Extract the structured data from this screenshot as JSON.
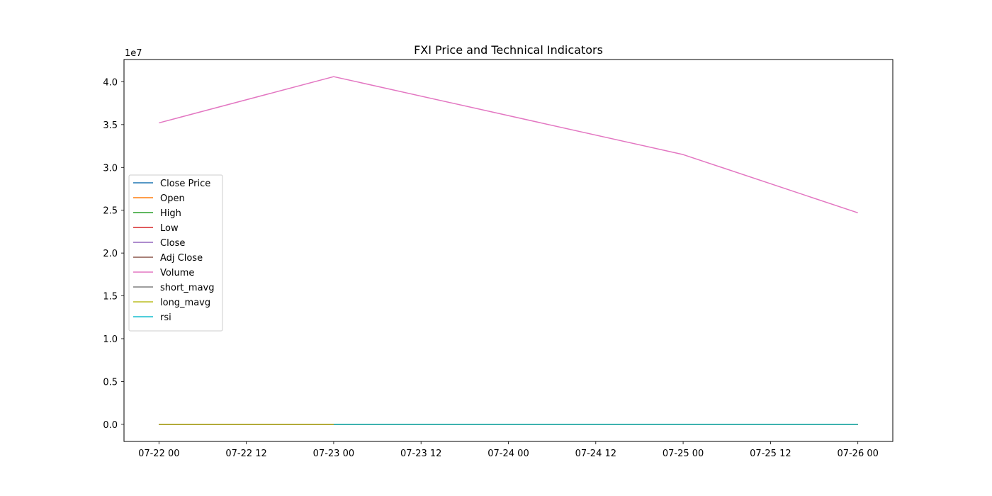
{
  "chart_data": {
    "type": "line",
    "title": "FXI Price and Technical Indicators",
    "xlabel": "",
    "ylabel": "",
    "y_offset_label": "1e7",
    "x": [
      "2024-07-22",
      "2024-07-23",
      "2024-07-25",
      "2024-07-26"
    ],
    "x_tick_labels": [
      "07-22 00",
      "07-22 12",
      "07-23 00",
      "07-23 12",
      "07-24 00",
      "07-24 12",
      "07-25 00",
      "07-25 12",
      "07-26 00"
    ],
    "y_tick_labels": [
      "0.0",
      "0.5",
      "1.0",
      "1.5",
      "2.0",
      "2.5",
      "3.0",
      "3.5",
      "4.0"
    ],
    "ylim": [
      -2000000,
      42600000
    ],
    "y_ticks": [
      0,
      5000000,
      10000000,
      15000000,
      20000000,
      25000000,
      30000000,
      35000000,
      40000000
    ],
    "grid": false,
    "legend_position": "center-left",
    "series": [
      {
        "name": "Close Price",
        "color": "#1f77b4",
        "values": [
          27.9,
          27.4,
          26.4,
          26.2
        ]
      },
      {
        "name": "Open",
        "color": "#ff7f0e",
        "values": [
          27.6,
          27.9,
          26.8,
          26.3
        ]
      },
      {
        "name": "High",
        "color": "#2ca02c",
        "values": [
          28.0,
          28.1,
          26.9,
          26.5
        ]
      },
      {
        "name": "Low",
        "color": "#d62728",
        "values": [
          27.5,
          27.3,
          26.3,
          26.1
        ]
      },
      {
        "name": "Close",
        "color": "#9467bd",
        "values": [
          27.9,
          27.4,
          26.4,
          26.2
        ]
      },
      {
        "name": "Adj Close",
        "color": "#8c564b",
        "values": [
          27.9,
          27.4,
          26.4,
          26.2
        ]
      },
      {
        "name": "Volume",
        "color": "#e377c2",
        "values": [
          35200000,
          40600000,
          31500000,
          24700000
        ]
      },
      {
        "name": "short_mavg",
        "color": "#7f7f7f",
        "values": [
          27.9,
          27.65,
          27.23,
          26.73
        ]
      },
      {
        "name": "long_mavg",
        "color": "#bcbd22",
        "values": [
          27.9,
          27.65,
          27.23,
          26.73
        ]
      },
      {
        "name": "rsi",
        "color": "#17becf",
        "values": [
          null,
          0.0,
          0.0,
          0.0
        ]
      }
    ]
  }
}
